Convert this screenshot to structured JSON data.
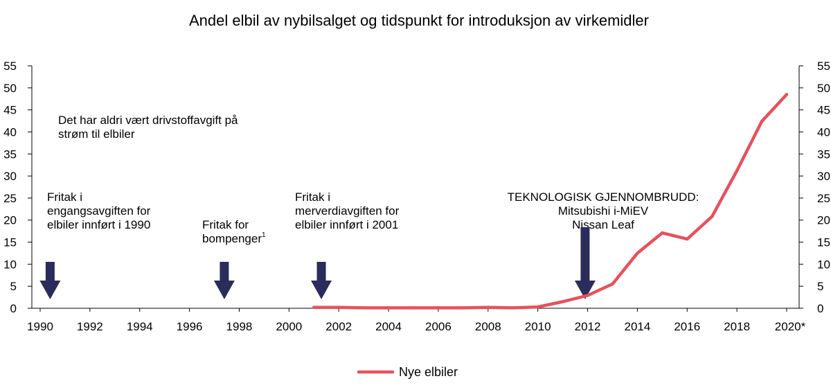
{
  "chart_data": {
    "type": "line",
    "title": "Andel elbil av nybilsalget og tidspunkt for introduksjon av virkemidler",
    "xlabel": "",
    "ylabel": "",
    "ylim": [
      0,
      55
    ],
    "yticks": [
      "0",
      "5",
      "10",
      "15",
      "20",
      "25",
      "30",
      "35",
      "40",
      "45",
      "50",
      "55"
    ],
    "xlim": [
      1990,
      2020
    ],
    "xticks": [
      {
        "x": 1990,
        "label": "1990"
      },
      {
        "x": 1992,
        "label": "1992"
      },
      {
        "x": 1994,
        "label": "1994"
      },
      {
        "x": 1996,
        "label": "1996"
      },
      {
        "x": 1998,
        "label": "1998"
      },
      {
        "x": 2000,
        "label": "2000"
      },
      {
        "x": 2002,
        "label": "2002"
      },
      {
        "x": 2004,
        "label": "2004"
      },
      {
        "x": 2006,
        "label": "2006"
      },
      {
        "x": 2008,
        "label": "2008"
      },
      {
        "x": 2010,
        "label": "2010"
      },
      {
        "x": 2012,
        "label": "2012"
      },
      {
        "x": 2014,
        "label": "2014"
      },
      {
        "x": 2016,
        "label": "2016"
      },
      {
        "x": 2018,
        "label": "2018"
      },
      {
        "x": 2020,
        "label": "2020*"
      }
    ],
    "series": [
      {
        "name": "Nye elbiler",
        "color": "#e8505b",
        "x": [
          2001,
          2002,
          2003,
          2004,
          2005,
          2006,
          2007,
          2008,
          2009,
          2010,
          2011,
          2012,
          2013,
          2014,
          2015,
          2016,
          2017,
          2018,
          2019,
          2020
        ],
        "y": [
          0.2,
          0.2,
          0.1,
          0.1,
          0.1,
          0.1,
          0.1,
          0.2,
          0.1,
          0.3,
          1.5,
          2.9,
          5.5,
          12.5,
          17.1,
          15.7,
          20.8,
          31.2,
          42.4,
          48.5
        ]
      }
    ],
    "legend": {
      "position": "bottom-center",
      "entries": [
        "Nye elbiler"
      ]
    },
    "grid": false,
    "annotations": [
      {
        "lines": [
          "Det har aldri vært drivstoffavgift på",
          "strøm til elbiler"
        ]
      },
      {
        "lines": [
          "Fritak i",
          "engangsavgiften for",
          "elbiler innført i 1990"
        ],
        "arrow_x": 1990.4
      },
      {
        "lines": [
          "Fritak for",
          "bompenger"
        ],
        "superscript": "1",
        "arrow_x": 1997.4
      },
      {
        "lines": [
          "Fritak i",
          "merverdiavgiften for",
          "elbiler innført i 2001"
        ],
        "arrow_x": 2001.3
      },
      {
        "lines": [
          "TEKNOLOGISK GJENNOMBRUDD:",
          "Mitsubishi i-MiEV",
          "Nissan Leaf"
        ],
        "arrow_x": 2011.9
      }
    ],
    "arrow_color": "#2b2c5b"
  }
}
